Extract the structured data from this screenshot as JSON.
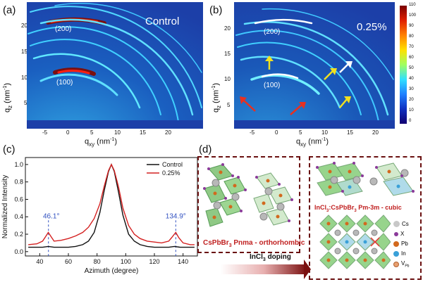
{
  "figure": {
    "panels": {
      "a": {
        "letter": "(a)",
        "corner_label": "Control",
        "ring_labels": [
          "(200)",
          "(100)"
        ],
        "ylabel_q": "q",
        "ylabel_sub": "z",
        "ylabel_unit": " (nm",
        "ylabel_exp": "-1",
        "ylabel_close": ")",
        "yticks": [
          "20",
          "15",
          "10",
          "5"
        ],
        "xticks": [
          "-5",
          "0",
          "5",
          "10",
          "15",
          "20"
        ],
        "xlabel_q": "q",
        "xlabel_sub": "xy",
        "xlabel_unit": " (nm",
        "xlabel_exp": "-1",
        "xlabel_close": ")"
      },
      "b": {
        "letter": "(b)",
        "corner_label": "0.25%",
        "ring_labels": [
          "(200)",
          "(100)"
        ],
        "ylabel_q": "q",
        "ylabel_sub": "z",
        "ylabel_unit": " (nm",
        "ylabel_exp": "-1",
        "ylabel_close": ")",
        "yticks": [
          "20",
          "15",
          "10",
          "5"
        ],
        "xticks": [
          "-5",
          "0",
          "5",
          "10",
          "15",
          "20"
        ],
        "xlabel_q": "q",
        "xlabel_sub": "xy",
        "xlabel_unit": " (nm",
        "xlabel_exp": "-1",
        "xlabel_close": ")",
        "colorbar_ticks": [
          "110",
          "100",
          "90",
          "80",
          "70",
          "60",
          "50",
          "40",
          "30",
          "20",
          "10",
          "0"
        ]
      },
      "c": {
        "letter": "(c)",
        "annotations": [
          "46.1°",
          "134.9°"
        ]
      },
      "d": {
        "letter": "(d)",
        "ortho_label": "CsPbBr",
        "ortho_sub": "3",
        "ortho_rest": "  Pnma - orthorhombic",
        "cubic_label_a": "InCl",
        "cubic_sub_a": "3",
        "cubic_label_b": ":CsPbBr",
        "cubic_sub_b": "3",
        "cubic_rest": " Pm-3m - cubic",
        "doping_a": "InCl",
        "doping_sub": "3",
        "doping_b": " doping",
        "legend": [
          "Cs",
          "X",
          "Pb",
          "In",
          "V"
        ],
        "legend_sub": "Pb",
        "legend_colors": [
          "#c8c8c8",
          "#8b3a9a",
          "#d2691e",
          "#3aa0d8",
          "#e8a070"
        ]
      }
    }
  },
  "chart_data": {
    "type": "line",
    "xlabel": "Azimuth (degree)",
    "ylabel": "Normalized Intensity",
    "xlim": [
      30,
      150
    ],
    "ylim": [
      -0.05,
      1.08
    ],
    "xticks": [
      40,
      60,
      80,
      100,
      120,
      140
    ],
    "yticks": [
      0.0,
      0.2,
      0.4,
      0.6,
      0.8,
      1.0
    ],
    "legend_position": "top-right",
    "series": [
      {
        "name": "Control",
        "color": "#111111",
        "x": [
          32,
          38,
          42,
          46,
          50,
          55,
          60,
          65,
          70,
          74,
          78,
          82,
          85,
          88,
          90,
          92,
          95,
          98,
          102,
          106,
          110,
          115,
          120,
          125,
          130,
          134,
          138,
          142,
          148
        ],
        "y": [
          0.05,
          0.05,
          0.05,
          0.06,
          0.05,
          0.05,
          0.05,
          0.06,
          0.08,
          0.12,
          0.22,
          0.45,
          0.7,
          0.92,
          1.0,
          0.92,
          0.68,
          0.42,
          0.2,
          0.12,
          0.08,
          0.06,
          0.05,
          0.05,
          0.05,
          0.06,
          0.05,
          0.05,
          0.05
        ]
      },
      {
        "name": "0.25%",
        "color": "#d42020",
        "x": [
          32,
          38,
          42,
          44,
          46,
          48,
          50,
          55,
          60,
          65,
          70,
          74,
          78,
          82,
          85,
          88,
          90,
          92,
          95,
          98,
          102,
          106,
          110,
          115,
          120,
          125,
          130,
          132,
          134.9,
          137,
          140,
          145,
          148
        ],
        "y": [
          0.08,
          0.09,
          0.12,
          0.17,
          0.22,
          0.17,
          0.12,
          0.13,
          0.15,
          0.18,
          0.22,
          0.28,
          0.38,
          0.55,
          0.75,
          0.93,
          1.0,
          0.93,
          0.74,
          0.5,
          0.3,
          0.2,
          0.15,
          0.12,
          0.11,
          0.1,
          0.12,
          0.16,
          0.22,
          0.16,
          0.1,
          0.08,
          0.08
        ]
      }
    ]
  }
}
